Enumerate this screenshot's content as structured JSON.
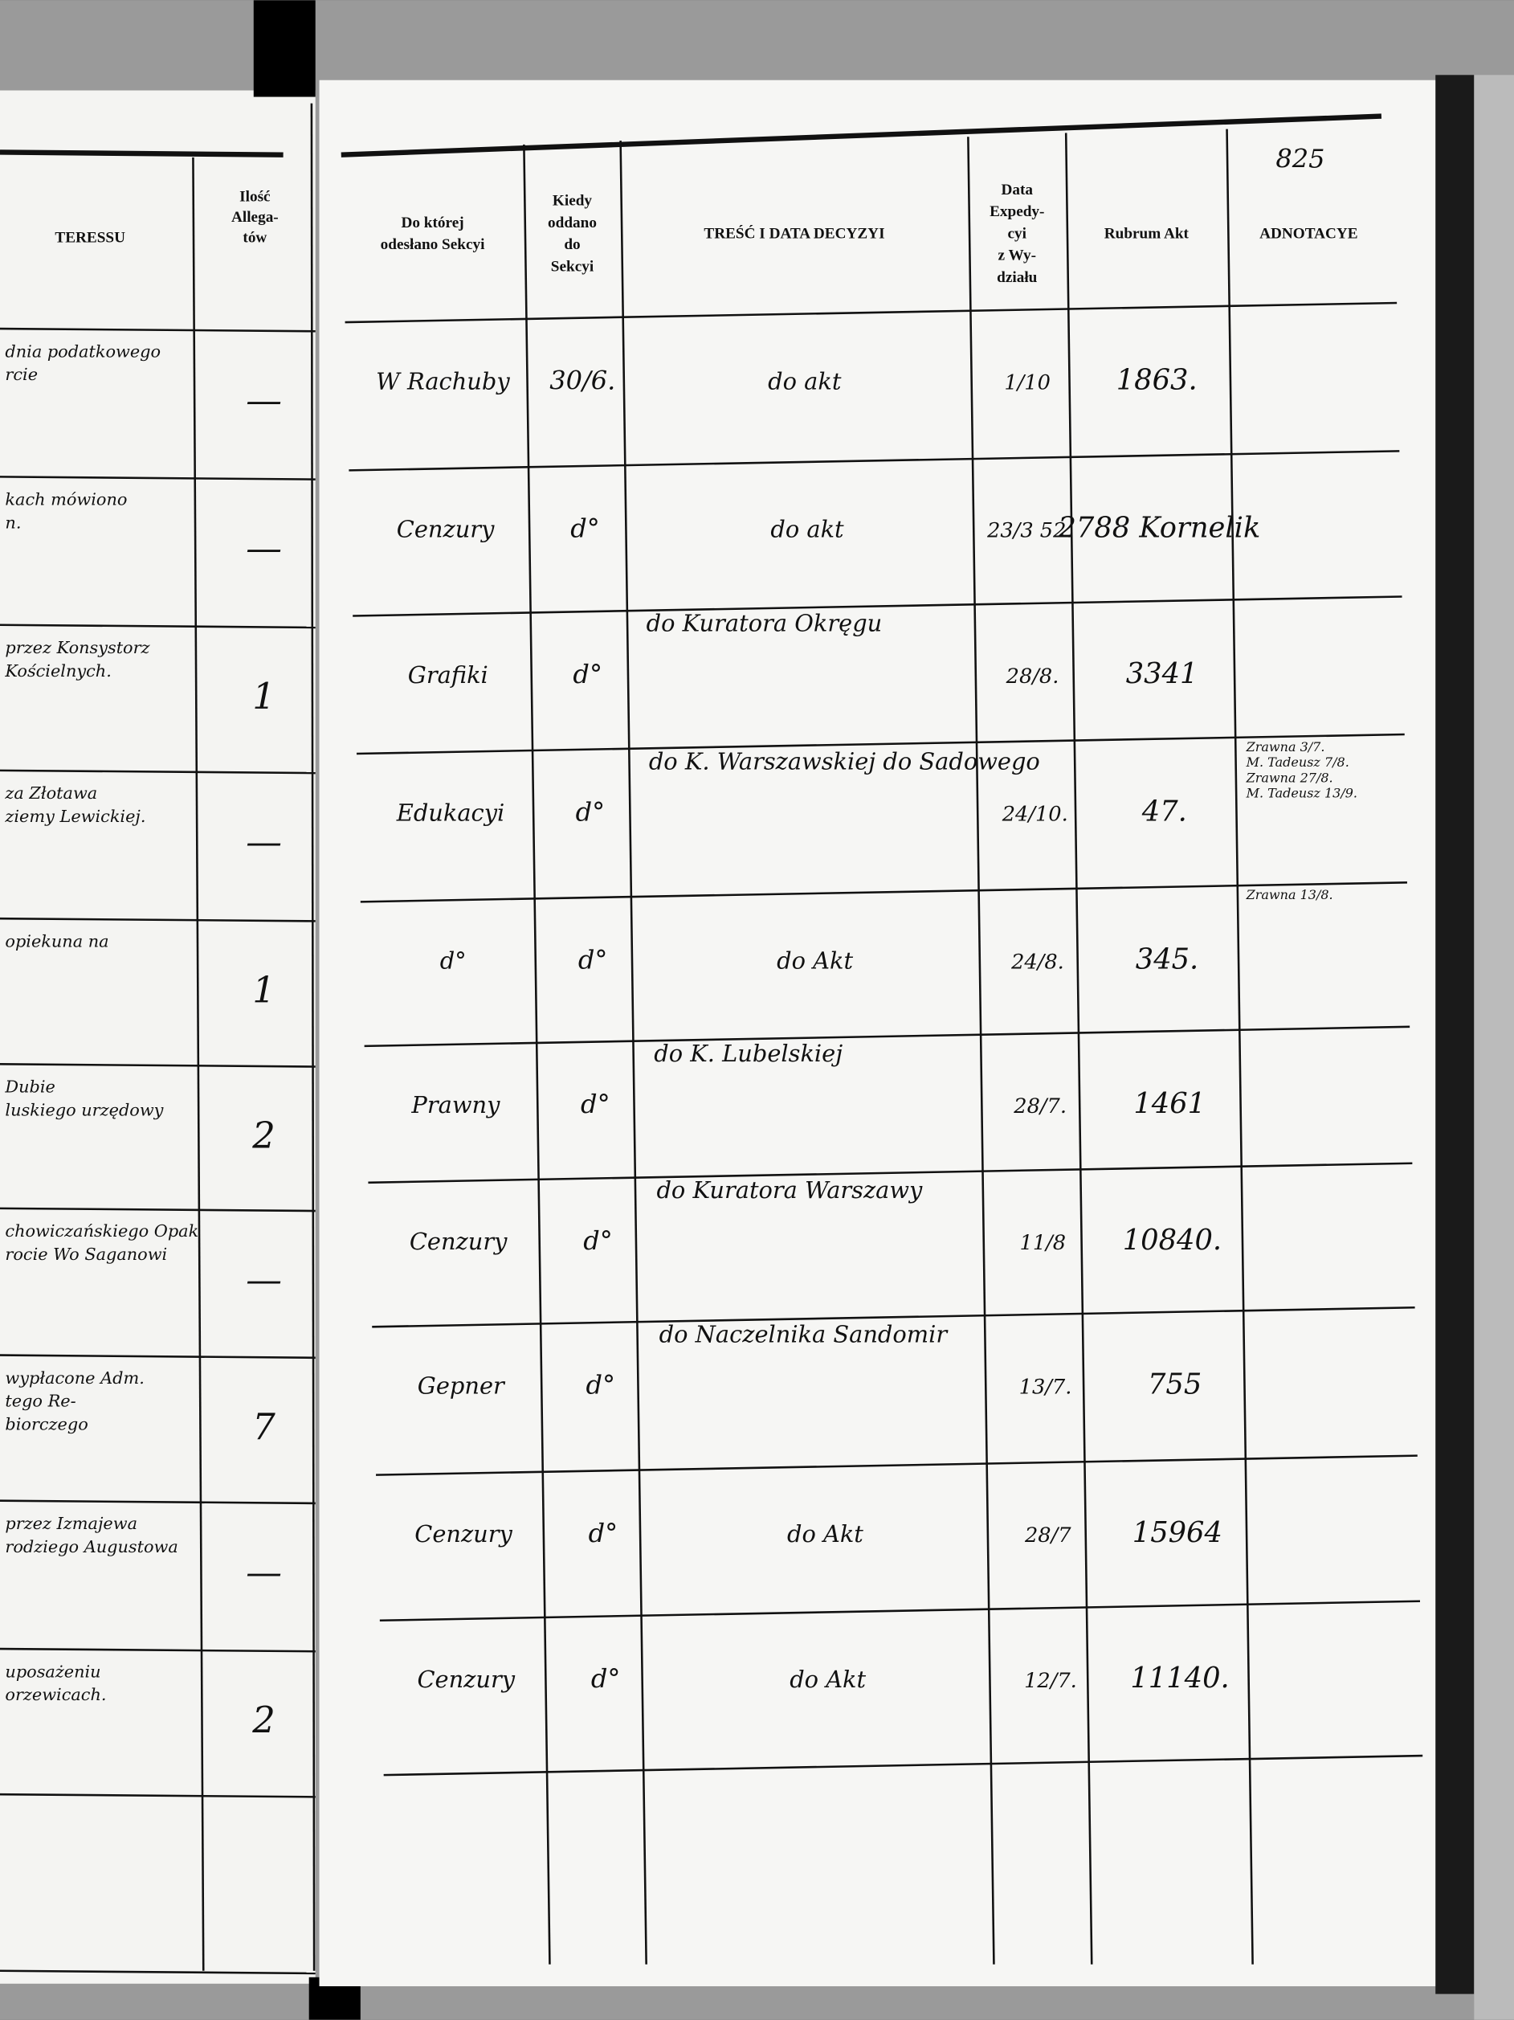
{
  "left_page": {
    "columns": [
      [
        "TERESSU"
      ],
      [
        "Ilość",
        "Allega-",
        "tów"
      ]
    ],
    "rows": [
      {
        "text": [
          "dnia podatkowego",
          "rcie"
        ],
        "count": "—"
      },
      {
        "text": [
          "kach mówiono",
          "n."
        ],
        "count": "—"
      },
      {
        "text": [
          "przez Konsystorz",
          "Kościelnych."
        ],
        "count": "1"
      },
      {
        "text": [
          "za Złotawa",
          "ziemy Lewickiej."
        ],
        "count": "—"
      },
      {
        "text": [
          "opiekuna na"
        ],
        "count": "1"
      },
      {
        "text": [
          "Dubie",
          "luskiego urzędowy"
        ],
        "count": "2"
      },
      {
        "text": [
          "chowiczańskiego Opak",
          "rocie Wo Saganowi"
        ],
        "count": "—"
      },
      {
        "text": [
          "wypłacone Adm.",
          "tego Re-",
          "biorczego"
        ],
        "count": "7"
      },
      {
        "text": [
          "przez Izmajewa",
          "rodziego Augustowa"
        ],
        "count": "—"
      },
      {
        "text": [
          "uposażeniu",
          "orzewicach."
        ],
        "count": "2"
      }
    ]
  },
  "right_page": {
    "page_number": "825",
    "columns": [
      [
        "Do której",
        "odesłano Sekcyi"
      ],
      [
        "Kiedy",
        "oddano",
        "do",
        "Sekcyi"
      ],
      [
        "TREŚĆ I DATA DECYZYI"
      ],
      [
        "Data",
        "Expedy-",
        "cyi",
        "z Wy-",
        "działu"
      ],
      [
        "Rubrum Akt"
      ],
      [
        "ADNOTACYE"
      ]
    ],
    "rows": [
      {
        "section": "W Rachuby",
        "date": "30/6.",
        "content": "do akt",
        "expedition": "1/10",
        "rubrum": "1863."
      },
      {
        "section": "Cenzury",
        "date": "d°",
        "content": "do akt",
        "expedition": "23/3 52.",
        "rubrum": "2788 Kornelik"
      },
      {
        "section": "Grafiki",
        "date": "d°",
        "content": "do Kuratora Okręgu",
        "expedition": "28/8.",
        "rubrum": "3341"
      },
      {
        "section": "Edukacyi",
        "date": "d°",
        "content": "do K. Warszawskiej do Sadowego",
        "expedition": "24/10.",
        "rubrum": "47.",
        "notes": [
          "Zrawna 3/7.",
          "M. Tadeusz 7/8.",
          "Zrawna 27/8.",
          "M. Tadeusz 13/9."
        ]
      },
      {
        "section": "d°",
        "date": "d°",
        "content": "do Akt",
        "expedition": "24/8.",
        "rubrum": "345.",
        "notes": [
          "Zrawna 13/8."
        ]
      },
      {
        "section": "Prawny",
        "date": "d°",
        "content": "do K. Lubelskiej",
        "expedition": "28/7.",
        "rubrum": "1461"
      },
      {
        "section": "Cenzury",
        "date": "d°",
        "content": "do Kuratora Warszawy",
        "expedition": "11/8",
        "rubrum": "10840."
      },
      {
        "section": "Gepner",
        "date": "d°",
        "content": "do Naczelnika Sandomir",
        "expedition": "13/7.",
        "rubrum": "755"
      },
      {
        "section": "Cenzury",
        "date": "d°",
        "content": "do Akt",
        "expedition": "28/7",
        "rubrum": "15964"
      },
      {
        "section": "Cenzury",
        "date": "d°",
        "content": "do Akt",
        "expedition": "12/7.",
        "rubrum": "11140."
      }
    ]
  }
}
